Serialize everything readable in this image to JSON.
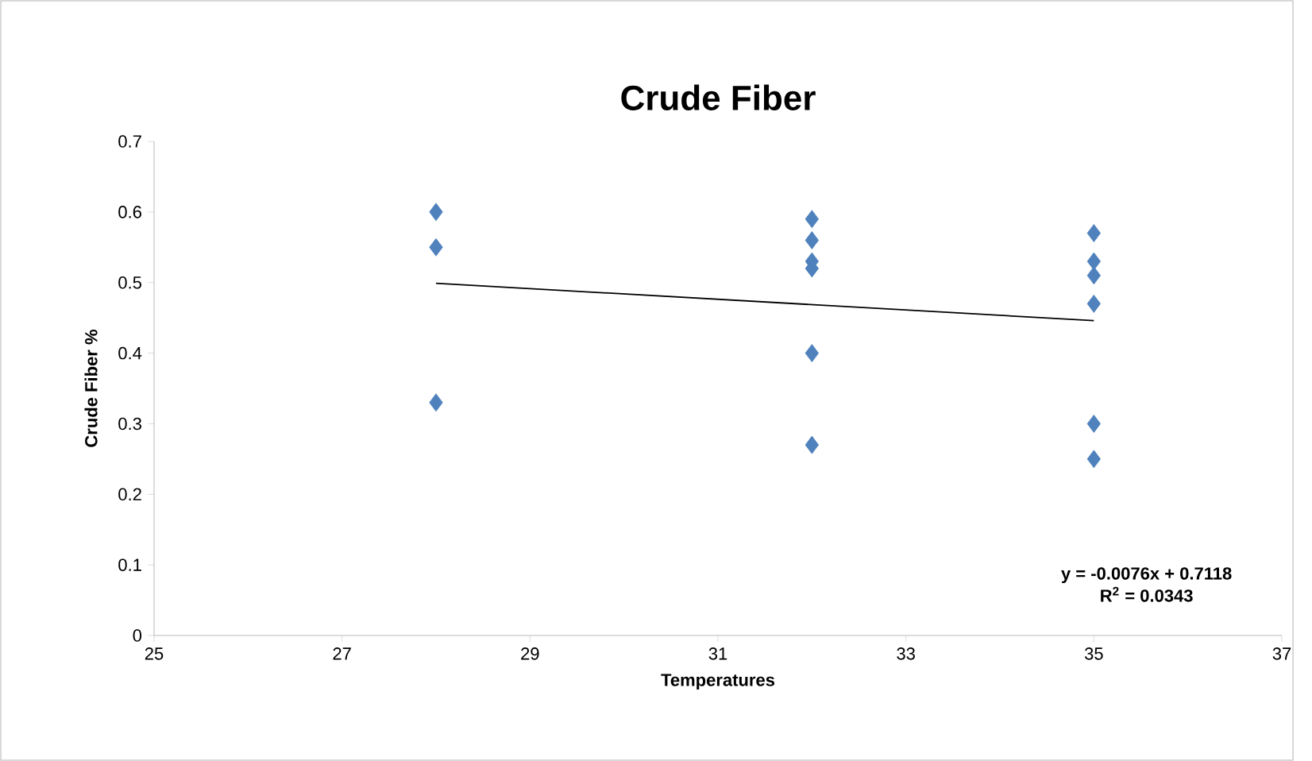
{
  "chart_data": {
    "type": "scatter",
    "title": "Crude Fiber",
    "xlabel": "Temperatures",
    "ylabel": "Crude Fiber %",
    "xlim": [
      25,
      37
    ],
    "xticks": [
      25,
      27,
      29,
      31,
      33,
      35,
      37
    ],
    "ylim": [
      0,
      0.7
    ],
    "yticks": [
      0,
      0.1,
      0.2,
      0.3,
      0.4,
      0.5,
      0.6,
      0.7
    ],
    "marker": "diamond",
    "series": [
      {
        "color": "#4f81bd",
        "x": [
          28,
          28,
          28,
          32,
          32,
          32,
          32,
          32,
          32,
          35,
          35,
          35,
          35,
          35,
          35
        ],
        "values": [
          0.6,
          0.55,
          0.33,
          0.59,
          0.56,
          0.53,
          0.52,
          0.4,
          0.27,
          0.57,
          0.53,
          0.51,
          0.47,
          0.3,
          0.25
        ]
      },
      {
        "type": "line",
        "color": "#000000",
        "marker": "none",
        "x": [
          28,
          35
        ],
        "values": [
          0.499,
          0.446
        ]
      }
    ],
    "annotations": [
      "y = -0.0076x + 0.7118",
      "R$^{2}$ = 0.0343"
    ]
  }
}
